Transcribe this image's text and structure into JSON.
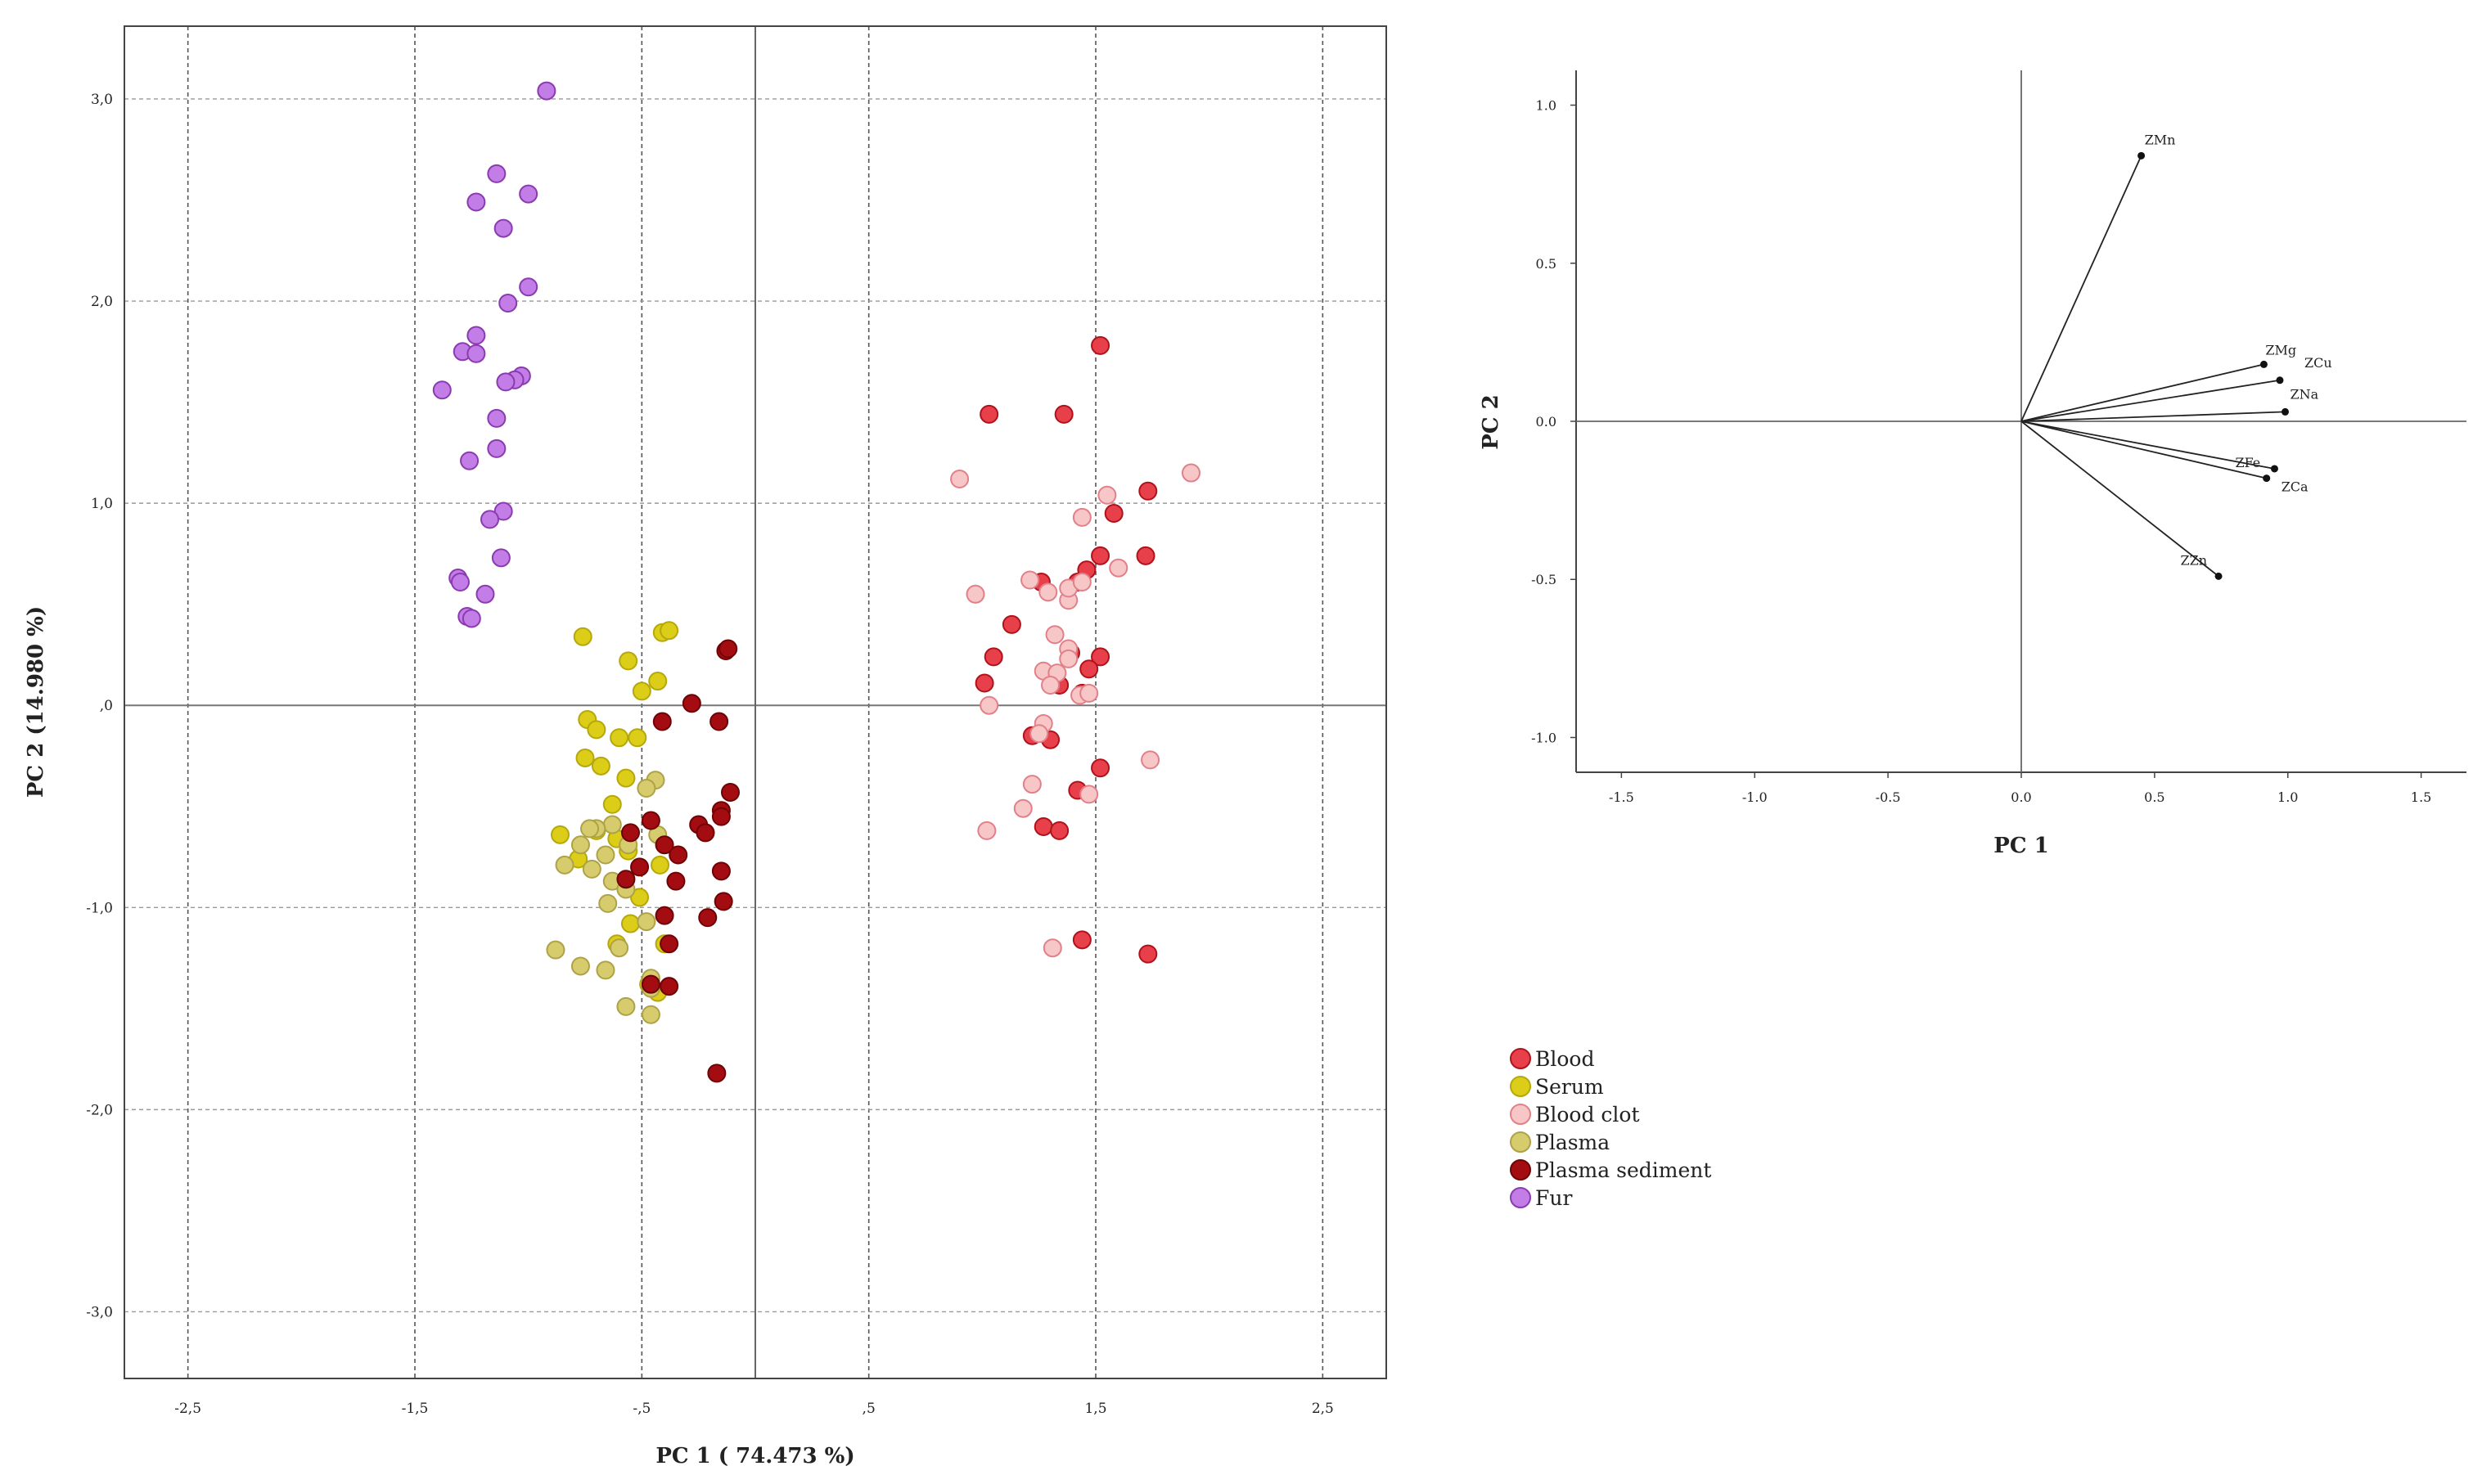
{
  "chart_data": [
    {
      "type": "scatter",
      "title": "",
      "xlabel": "PC 1 ( 74.473 %)",
      "ylabel": "PC 2 (14.980 %)",
      "xlim": [
        -2.78,
        2.78
      ],
      "ylim": [
        -3.33,
        3.36
      ],
      "xticks": [
        -2.5,
        -1.5,
        -0.5,
        0.5,
        1.5,
        2.5
      ],
      "xtick_labels": [
        "-2,5",
        "-1,5",
        "-,5",
        ",5",
        "1,5",
        "2,5"
      ],
      "yticks": [
        3.0,
        2.0,
        1.0,
        0.0,
        -1.0,
        -2.0,
        -3.0
      ],
      "ytick_labels": [
        "3,0",
        "2,0",
        "1,0",
        ",0",
        "-1,0",
        "-2,0",
        "-3,0"
      ],
      "grid": true,
      "legend_position": "bottom-right",
      "series": [
        {
          "name": "Blood",
          "fill": "#e8404a",
          "stroke": "#b0121c",
          "points": [
            [
              1.52,
              1.78
            ],
            [
              1.03,
              1.44
            ],
            [
              1.36,
              1.44
            ],
            [
              1.58,
              0.95
            ],
            [
              1.73,
              1.06
            ],
            [
              1.46,
              0.67
            ],
            [
              1.52,
              0.74
            ],
            [
              1.72,
              0.74
            ],
            [
              1.26,
              0.61
            ],
            [
              1.13,
              0.4
            ],
            [
              1.05,
              0.24
            ],
            [
              1.52,
              0.24
            ],
            [
              1.39,
              0.26
            ],
            [
              1.01,
              0.11
            ],
            [
              1.34,
              0.1
            ],
            [
              1.47,
              0.18
            ],
            [
              1.44,
              0.06
            ],
            [
              1.22,
              -0.15
            ],
            [
              1.52,
              -0.31
            ],
            [
              1.42,
              -0.42
            ],
            [
              1.27,
              -0.6
            ],
            [
              1.34,
              -0.62
            ],
            [
              1.44,
              -1.16
            ],
            [
              1.73,
              -1.23
            ],
            [
              1.42,
              0.61
            ],
            [
              1.3,
              -0.17
            ]
          ]
        },
        {
          "name": "Serum",
          "fill": "#dccd19",
          "stroke": "#b5a80a",
          "points": [
            [
              -0.76,
              0.34
            ],
            [
              -0.56,
              0.22
            ],
            [
              -0.41,
              0.36
            ],
            [
              -0.43,
              0.12
            ],
            [
              -0.5,
              0.07
            ],
            [
              -0.74,
              -0.07
            ],
            [
              -0.7,
              -0.12
            ],
            [
              -0.6,
              -0.16
            ],
            [
              -0.52,
              -0.16
            ],
            [
              -0.75,
              -0.26
            ],
            [
              -0.68,
              -0.3
            ],
            [
              -0.57,
              -0.36
            ],
            [
              -0.63,
              -0.49
            ],
            [
              -0.86,
              -0.64
            ],
            [
              -0.7,
              -0.62
            ],
            [
              -0.61,
              -0.66
            ],
            [
              -0.78,
              -0.76
            ],
            [
              -0.56,
              -0.72
            ],
            [
              -0.42,
              -0.79
            ],
            [
              -0.51,
              -0.95
            ],
            [
              -0.55,
              -1.08
            ],
            [
              -0.61,
              -1.18
            ],
            [
              -0.4,
              -1.18
            ],
            [
              -0.47,
              -1.38
            ],
            [
              -0.43,
              -1.42
            ],
            [
              -0.38,
              0.37
            ]
          ]
        },
        {
          "name": "Blood clot",
          "fill": "#f7c6c7",
          "stroke": "#e2808a",
          "points": [
            [
              0.9,
              1.12
            ],
            [
              1.92,
              1.15
            ],
            [
              1.55,
              1.04
            ],
            [
              1.44,
              0.93
            ],
            [
              0.97,
              0.55
            ],
            [
              1.21,
              0.62
            ],
            [
              1.29,
              0.56
            ],
            [
              1.38,
              0.52
            ],
            [
              1.38,
              0.58
            ],
            [
              1.44,
              0.61
            ],
            [
              1.6,
              0.68
            ],
            [
              1.32,
              0.35
            ],
            [
              1.38,
              0.28
            ],
            [
              1.38,
              0.23
            ],
            [
              1.27,
              0.17
            ],
            [
              1.33,
              0.16
            ],
            [
              1.3,
              0.1
            ],
            [
              1.43,
              0.05
            ],
            [
              1.47,
              0.06
            ],
            [
              1.03,
              0.0
            ],
            [
              1.27,
              -0.09
            ],
            [
              1.25,
              -0.14
            ],
            [
              1.22,
              -0.39
            ],
            [
              1.47,
              -0.44
            ],
            [
              1.18,
              -0.51
            ],
            [
              1.02,
              -0.62
            ],
            [
              1.74,
              -0.27
            ],
            [
              1.31,
              -1.2
            ]
          ]
        },
        {
          "name": "Plasma",
          "fill": "#d6cc6d",
          "stroke": "#aea247",
          "points": [
            [
              -0.44,
              -0.37
            ],
            [
              -0.63,
              -0.59
            ],
            [
              -0.77,
              -0.69
            ],
            [
              -0.66,
              -0.74
            ],
            [
              -0.72,
              -0.81
            ],
            [
              -0.63,
              -0.87
            ],
            [
              -0.57,
              -0.91
            ],
            [
              -0.65,
              -0.98
            ],
            [
              -0.84,
              -0.79
            ],
            [
              -0.7,
              -0.61
            ],
            [
              -0.56,
              -0.69
            ],
            [
              -0.43,
              -0.64
            ],
            [
              -0.6,
              -1.2
            ],
            [
              -0.88,
              -1.21
            ],
            [
              -0.77,
              -1.29
            ],
            [
              -0.66,
              -1.31
            ],
            [
              -0.46,
              -1.35
            ],
            [
              -0.46,
              -1.4
            ],
            [
              -0.57,
              -1.49
            ],
            [
              -0.46,
              -1.53
            ],
            [
              -0.48,
              -0.41
            ],
            [
              -0.48,
              -1.07
            ],
            [
              -0.73,
              -0.61
            ]
          ]
        },
        {
          "name": "Plasma sediment",
          "fill": "#a30d11",
          "stroke": "#6e0306",
          "points": [
            [
              -0.13,
              0.27
            ],
            [
              -0.12,
              0.28
            ],
            [
              -0.28,
              0.01
            ],
            [
              -0.41,
              -0.08
            ],
            [
              -0.16,
              -0.08
            ],
            [
              -0.11,
              -0.43
            ],
            [
              -0.15,
              -0.52
            ],
            [
              -0.15,
              -0.55
            ],
            [
              -0.25,
              -0.59
            ],
            [
              -0.22,
              -0.63
            ],
            [
              -0.46,
              -0.57
            ],
            [
              -0.55,
              -0.63
            ],
            [
              -0.4,
              -0.69
            ],
            [
              -0.34,
              -0.74
            ],
            [
              -0.51,
              -0.8
            ],
            [
              -0.15,
              -0.82
            ],
            [
              -0.57,
              -0.86
            ],
            [
              -0.35,
              -0.87
            ],
            [
              -0.14,
              -0.97
            ],
            [
              -0.21,
              -1.05
            ],
            [
              -0.4,
              -1.04
            ],
            [
              -0.38,
              -1.18
            ],
            [
              -0.46,
              -1.38
            ],
            [
              -0.38,
              -1.39
            ],
            [
              -0.17,
              -1.82
            ]
          ]
        },
        {
          "name": "Fur",
          "fill": "#c37de6",
          "stroke": "#8a3bb0",
          "points": [
            [
              -0.92,
              3.04
            ],
            [
              -1.14,
              2.63
            ],
            [
              -1.23,
              2.49
            ],
            [
              -1.0,
              2.53
            ],
            [
              -1.11,
              2.36
            ],
            [
              -1.0,
              2.07
            ],
            [
              -1.09,
              1.99
            ],
            [
              -1.23,
              1.83
            ],
            [
              -1.29,
              1.75
            ],
            [
              -1.23,
              1.74
            ],
            [
              -1.03,
              1.63
            ],
            [
              -1.06,
              1.61
            ],
            [
              -1.1,
              1.6
            ],
            [
              -1.38,
              1.56
            ],
            [
              -1.14,
              1.42
            ],
            [
              -1.14,
              1.27
            ],
            [
              -1.26,
              1.21
            ],
            [
              -1.11,
              0.96
            ],
            [
              -1.17,
              0.92
            ],
            [
              -1.12,
              0.73
            ],
            [
              -1.31,
              0.63
            ],
            [
              -1.3,
              0.61
            ],
            [
              -1.19,
              0.55
            ],
            [
              -1.27,
              0.44
            ],
            [
              -1.25,
              0.43
            ]
          ]
        }
      ]
    },
    {
      "type": "loading-plot",
      "title": "",
      "xlabel": "PC 1",
      "ylabel": "PC 2",
      "xlim": [
        -1.67,
        1.67
      ],
      "ylim": [
        -1.11,
        1.11
      ],
      "xticks": [
        -1.5,
        -1.0,
        -0.5,
        0.0,
        0.5,
        1.0,
        1.5
      ],
      "xtick_labels": [
        "-1.5",
        "-1.0",
        "-0.5",
        "0.0",
        "0.5",
        "1.0",
        "1.5"
      ],
      "yticks": [
        1.0,
        0.5,
        0.0,
        -0.5,
        -1.0
      ],
      "ytick_labels": [
        "1.0",
        "0.5",
        "0.0",
        "-0.5",
        "-1.0"
      ],
      "vectors": [
        {
          "name": "ZMn",
          "x": 0.45,
          "y": 0.84
        },
        {
          "name": "ZMg",
          "x": 0.91,
          "y": 0.18
        },
        {
          "name": "ZCu",
          "x": 0.97,
          "y": 0.13
        },
        {
          "name": "ZNa",
          "x": 0.99,
          "y": 0.03
        },
        {
          "name": "ZFe",
          "x": 0.95,
          "y": -0.15
        },
        {
          "name": "ZCa",
          "x": 0.92,
          "y": -0.18
        },
        {
          "name": "ZZn",
          "x": 0.74,
          "y": -0.49
        }
      ]
    }
  ]
}
